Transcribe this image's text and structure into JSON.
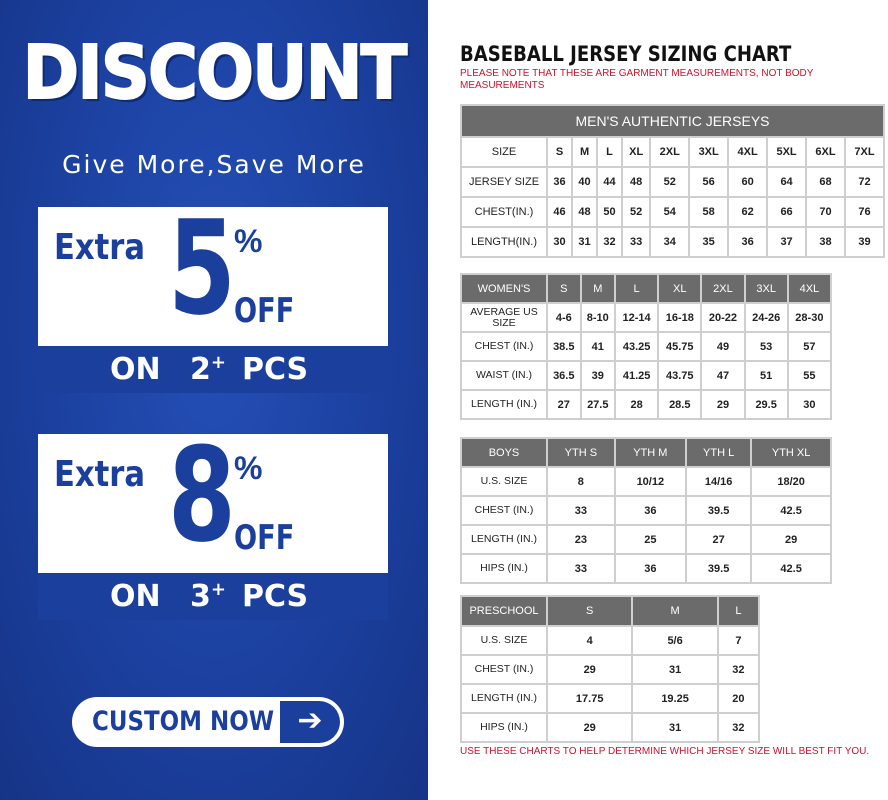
{
  "promo": {
    "title": "DISCOUNT",
    "tagline": "Give More,Save More",
    "offers": [
      {
        "prefix": "Extra",
        "value": "5",
        "percent": "%",
        "off": "OFF",
        "on": "ON",
        "qty": "2",
        "plus": "+",
        "pcs": "PCS"
      },
      {
        "prefix": "Extra",
        "value": "8",
        "percent": "%",
        "off": "OFF",
        "on": "ON",
        "qty": "3",
        "plus": "+",
        "pcs": "PCS"
      }
    ],
    "button": {
      "label": "CUSTOM NOW",
      "icon": "arrow-right-icon"
    },
    "brand_color": "#1b3f9c"
  },
  "chart": {
    "title": "BASEBALL JERSEY SIZING CHART",
    "note": "PLEASE NOTE THAT THESE ARE GARMENT MEASUREMENTS, NOT BODY MEASUREMENTS",
    "footer": "USE THESE CHARTS TO HELP DETERMINE WHICH JERSEY SIZE WILL BEST FIT YOU.",
    "note_color": "#d0102a"
  },
  "men": {
    "caption": "MEN'S AUTHENTIC JERSEYS",
    "rows": [
      [
        "SIZE",
        "S",
        "M",
        "L",
        "XL",
        "2XL",
        "3XL",
        "4XL",
        "5XL",
        "6XL",
        "7XL"
      ],
      [
        "JERSEY SIZE",
        "36",
        "40",
        "44",
        "48",
        "52",
        "56",
        "60",
        "64",
        "68",
        "72"
      ],
      [
        "CHEST(IN.)",
        "46",
        "48",
        "50",
        "52",
        "54",
        "58",
        "62",
        "66",
        "70",
        "76"
      ],
      [
        "LENGTH(IN.)",
        "30",
        "31",
        "32",
        "33",
        "34",
        "35",
        "36",
        "37",
        "38",
        "39"
      ]
    ]
  },
  "women": {
    "header": [
      "WOMEN'S",
      "S",
      "M",
      "L",
      "XL",
      "2XL",
      "3XL",
      "4XL"
    ],
    "rows": [
      [
        "AVERAGE US SIZE",
        "4-6",
        "8-10",
        "12-14",
        "16-18",
        "20-22",
        "24-26",
        "28-30"
      ],
      [
        "CHEST (IN.)",
        "38.5",
        "41",
        "43.25",
        "45.75",
        "49",
        "53",
        "57"
      ],
      [
        "WAIST (IN.)",
        "36.5",
        "39",
        "41.25",
        "43.75",
        "47",
        "51",
        "55"
      ],
      [
        "LENGTH (IN.)",
        "27",
        "27.5",
        "28",
        "28.5",
        "29",
        "29.5",
        "30"
      ]
    ]
  },
  "boys": {
    "header": [
      "BOYS",
      "YTH S",
      "YTH M",
      "YTH L",
      "YTH XL"
    ],
    "rows": [
      [
        "U.S. SIZE",
        "8",
        "10/12",
        "14/16",
        "18/20"
      ],
      [
        "CHEST (IN.)",
        "33",
        "36",
        "39.5",
        "42.5"
      ],
      [
        "LENGTH (IN.)",
        "23",
        "25",
        "27",
        "29"
      ],
      [
        "HIPS (IN.)",
        "33",
        "36",
        "39.5",
        "42.5"
      ]
    ]
  },
  "preschool": {
    "header": [
      "PRESCHOOL",
      "S",
      "M",
      "L"
    ],
    "rows": [
      [
        "U.S. SIZE",
        "4",
        "5/6",
        "7"
      ],
      [
        "CHEST (IN.)",
        "29",
        "31",
        "32"
      ],
      [
        "LENGTH (IN.)",
        "17.75",
        "19.25",
        "20"
      ],
      [
        "HIPS (IN.)",
        "29",
        "31",
        "32"
      ]
    ]
  }
}
